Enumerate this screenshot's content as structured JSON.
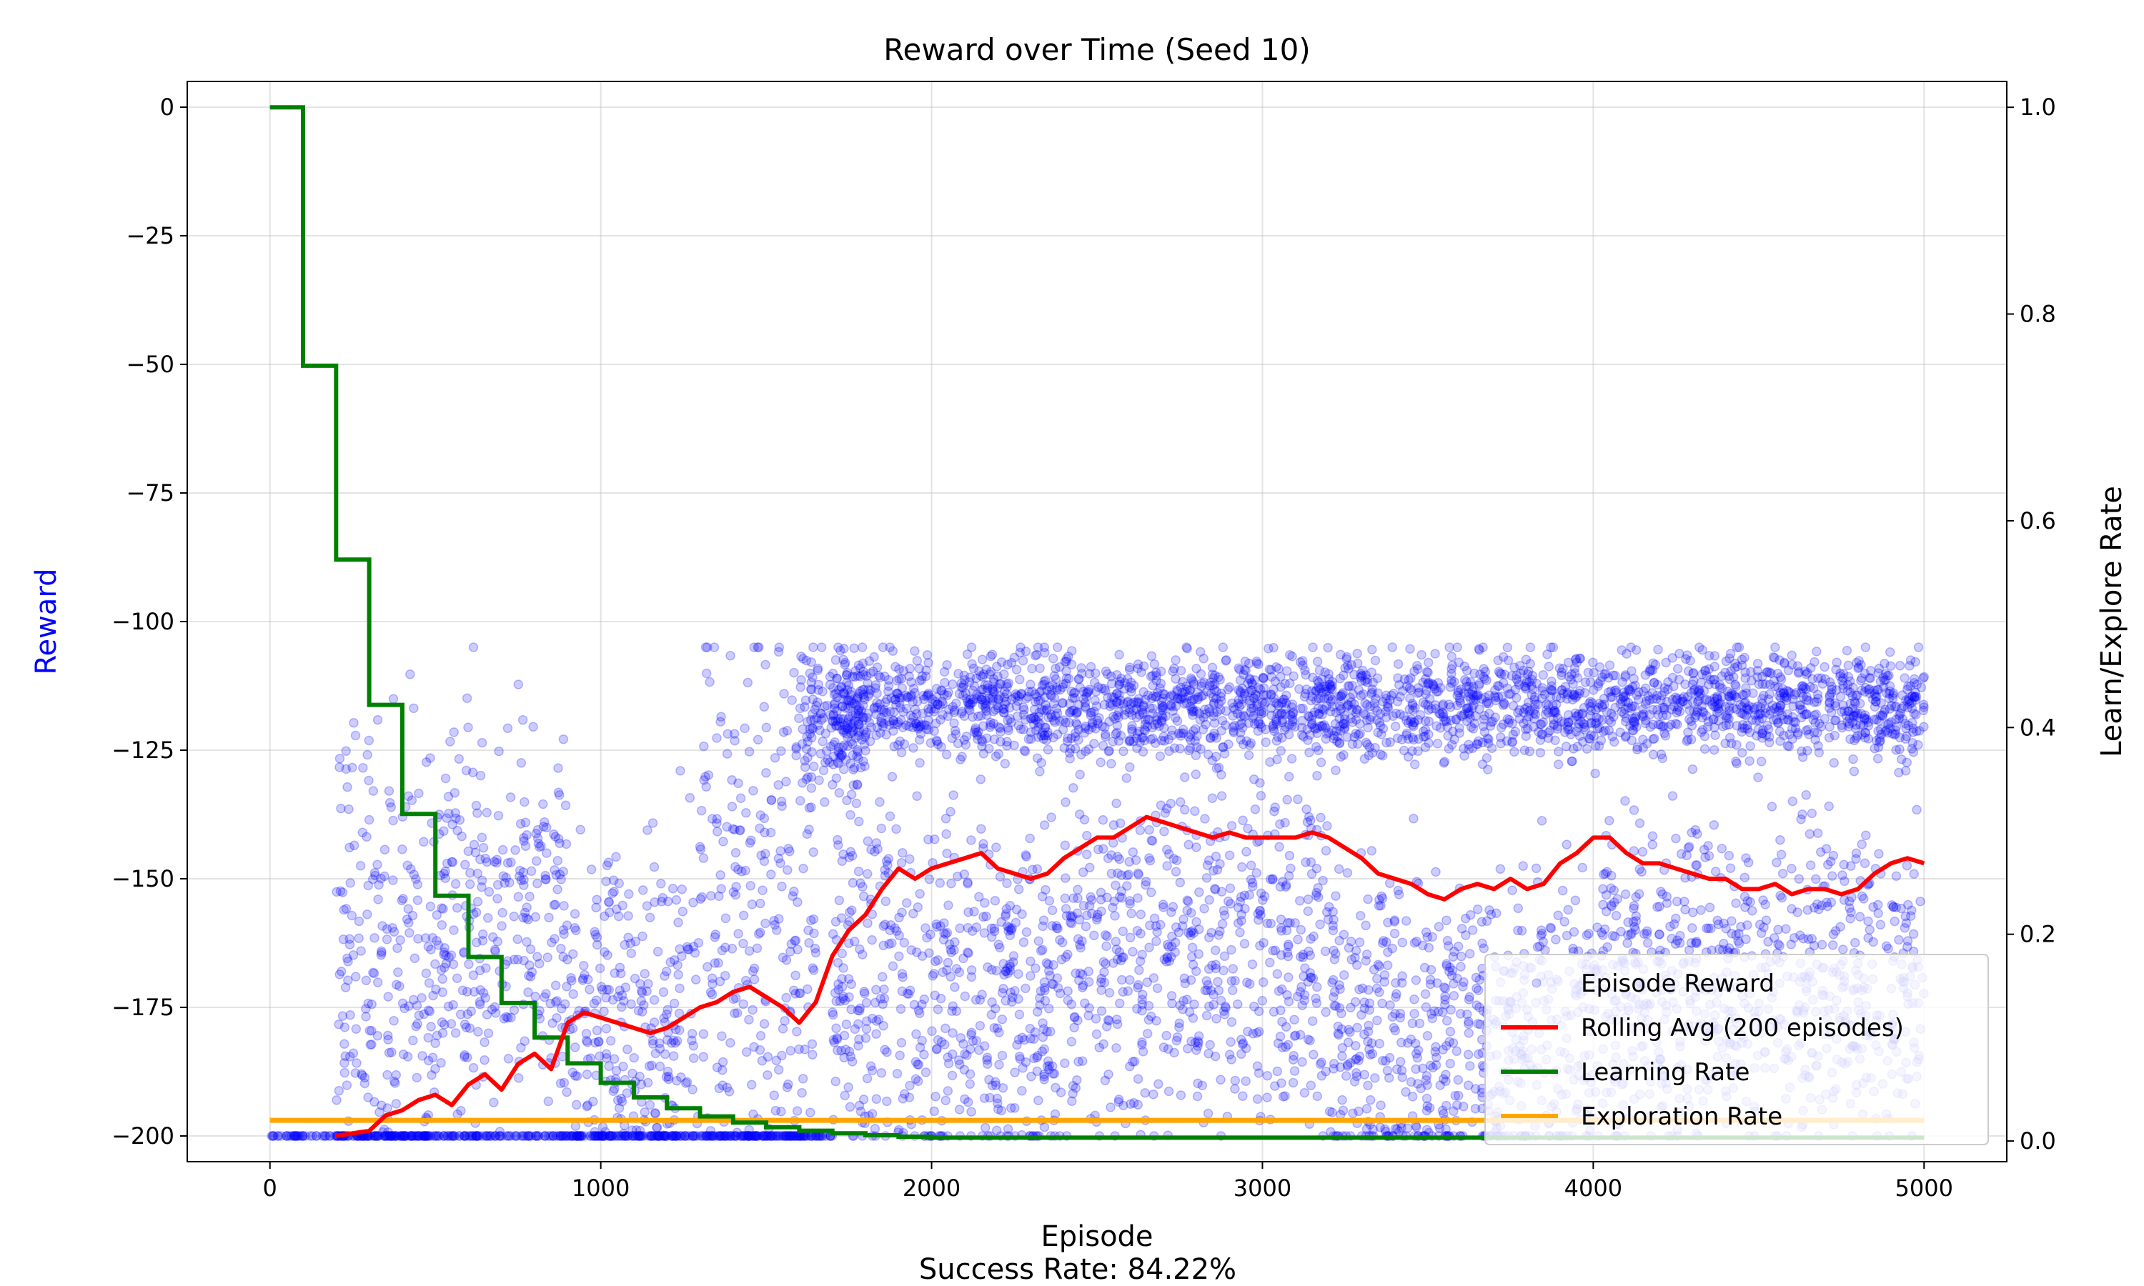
{
  "chart_data": {
    "type": "line",
    "title": "Reward over Time (Seed 10)",
    "xlabel": "Episode",
    "ylabel_left": "Reward",
    "ylabel_right": "Learn/Explore Rate",
    "footer": "Success Rate: 84.22%",
    "xlim": [
      -250,
      5250
    ],
    "ylim_left": [
      -205,
      5
    ],
    "ylim_right": [
      -0.02,
      1.025
    ],
    "xticks": [
      0,
      1000,
      2000,
      3000,
      4000,
      5000
    ],
    "yticks_left": [
      0,
      -25,
      -50,
      -75,
      -100,
      -125,
      -150,
      -175,
      -200
    ],
    "yticks_right": [
      0.0,
      0.2,
      0.4,
      0.6,
      0.8,
      1.0
    ],
    "grid": true,
    "legend_position": "lower-right",
    "colors": {
      "episode_reward": "#0000ff",
      "rolling_avg": "#ff0000",
      "learning_rate": "#008000",
      "exploration_rate": "#ffa500",
      "left_ylabel": "#0000ff"
    },
    "series": [
      {
        "name": "Episode Reward",
        "kind": "scatter",
        "axis": "left",
        "note": "5000 noisy episode rewards; approximated by the segment profile below",
        "profile": [
          {
            "x0": 0,
            "x1": 1700,
            "floor_value": -200
          },
          {
            "x0": 200,
            "x1": 500,
            "center": -170,
            "spread": 28
          },
          {
            "x0": 500,
            "x1": 900,
            "center": -160,
            "spread": 20
          },
          {
            "x0": 900,
            "x1": 1300,
            "center": -180,
            "spread": 18
          },
          {
            "x0": 1300,
            "x1": 1650,
            "center": -160,
            "spread": 30
          },
          {
            "x0": 1600,
            "x1": 1800,
            "center": -120,
            "spread": 8
          },
          {
            "x0": 1700,
            "x1": 5000,
            "center": -116,
            "spread": 5
          },
          {
            "x0": 1700,
            "x1": 2400,
            "center": -172,
            "spread": 18
          },
          {
            "x0": 2400,
            "x1": 3200,
            "center": -163,
            "spread": 18
          },
          {
            "x0": 3200,
            "x1": 4000,
            "center": -180,
            "spread": 16
          },
          {
            "x0": 4000,
            "x1": 5000,
            "center": -170,
            "spread": 16
          }
        ]
      },
      {
        "name": "Rolling Avg (200 episodes)",
        "kind": "line",
        "axis": "left",
        "x": [
          199,
          300,
          350,
          400,
          450,
          500,
          550,
          600,
          650,
          700,
          750,
          800,
          850,
          900,
          950,
          1000,
          1050,
          1100,
          1150,
          1200,
          1250,
          1300,
          1350,
          1400,
          1450,
          1500,
          1550,
          1600,
          1650,
          1700,
          1750,
          1800,
          1850,
          1900,
          1950,
          2000,
          2050,
          2100,
          2150,
          2200,
          2250,
          2300,
          2350,
          2400,
          2450,
          2500,
          2550,
          2600,
          2650,
          2700,
          2750,
          2800,
          2850,
          2900,
          2950,
          3000,
          3050,
          3100,
          3150,
          3200,
          3250,
          3300,
          3350,
          3400,
          3450,
          3500,
          3550,
          3600,
          3650,
          3700,
          3750,
          3800,
          3850,
          3900,
          3950,
          4000,
          4050,
          4100,
          4150,
          4200,
          4250,
          4300,
          4350,
          4400,
          4450,
          4500,
          4550,
          4600,
          4650,
          4700,
          4750,
          4800,
          4850,
          4900,
          4950,
          5000
        ],
        "y": [
          -200,
          -199,
          -196,
          -195,
          -193,
          -192,
          -194,
          -190,
          -188,
          -191,
          -186,
          -184,
          -187,
          -178,
          -176,
          -177,
          -178,
          -179,
          -180,
          -179,
          -177,
          -175,
          -174,
          -172,
          -171,
          -173,
          -175,
          -178,
          -174,
          -165,
          -160,
          -157,
          -152,
          -148,
          -150,
          -148,
          -147,
          -146,
          -145,
          -148,
          -149,
          -150,
          -149,
          -146,
          -144,
          -142,
          -142,
          -140,
          -138,
          -139,
          -140,
          -141,
          -142,
          -141,
          -142,
          -142,
          -142,
          -142,
          -141,
          -142,
          -144,
          -146,
          -149,
          -150,
          -151,
          -153,
          -154,
          -152,
          -151,
          -152,
          -150,
          -152,
          -151,
          -147,
          -145,
          -142,
          -142,
          -145,
          -147,
          -147,
          -148,
          -149,
          -150,
          -150,
          -152,
          -152,
          -151,
          -153,
          -152,
          -152,
          -153,
          -152,
          -149,
          -147,
          -146,
          -147
        ]
      },
      {
        "name": "Learning Rate",
        "kind": "step",
        "axis": "right",
        "x": [
          0,
          100,
          200,
          300,
          400,
          500,
          600,
          700,
          800,
          900,
          1000,
          1100,
          1200,
          1300,
          1400,
          1500,
          1600,
          1700,
          1800,
          1900,
          2000,
          5000
        ],
        "y": [
          1.0,
          0.75,
          0.5625,
          0.4219,
          0.3164,
          0.2373,
          0.178,
          0.1335,
          0.1001,
          0.0751,
          0.0563,
          0.0422,
          0.0317,
          0.0238,
          0.0178,
          0.0134,
          0.01,
          0.0075,
          0.0056,
          0.0042,
          0.0032,
          0.0032
        ]
      },
      {
        "name": "Exploration Rate",
        "kind": "line",
        "axis": "right",
        "x": [
          0,
          5000
        ],
        "y": [
          0.02,
          0.02
        ]
      }
    ]
  }
}
